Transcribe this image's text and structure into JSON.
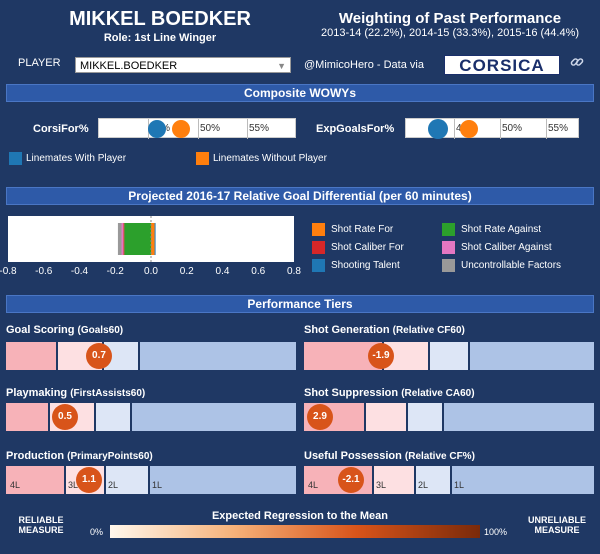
{
  "header": {
    "player_name": "MIKKEL BOEDKER",
    "role": "Role: 1st Line Winger",
    "weighting_title": "Weighting of Past Performance",
    "weighting_subtitle": "2013-14 (22.2%), 2014-15 (33.3%), 2015-16 (44.4%)"
  },
  "controls": {
    "player_label": "PLAYER",
    "player_value": "MIKKEL.BOEDKER",
    "credit": "@MimicoHero - Data via",
    "logo_text": "CORSICA",
    "icon": "link-icon"
  },
  "wowy": {
    "title": "Composite WOWYs",
    "metrics": [
      {
        "label": "CorsiFor%",
        "ticks": [
          "45%",
          "50%",
          "55%"
        ],
        "with_player": 45.0,
        "without_player": 46.2
      },
      {
        "label": "ExpGoalsFor%",
        "ticks": [
          "45%",
          "50%",
          "55%"
        ],
        "with_player": 43.5,
        "without_player": 45.7
      }
    ],
    "legend": [
      {
        "label": "Linemates With Player",
        "color": "#1f77b4"
      },
      {
        "label": "Linemates Without Player",
        "color": "#ff7f0e"
      }
    ]
  },
  "projection": {
    "title": "Projected 2016-17 Relative Goal Differential (per 60 minutes)",
    "axis_ticks": [
      "-0.8",
      "-0.6",
      "-0.4",
      "-0.2",
      "0.0",
      "0.2",
      "0.4",
      "0.6",
      "0.8"
    ],
    "legend": [
      {
        "label": "Shot Rate For",
        "color": "#ff7f0e"
      },
      {
        "label": "Shot Rate Against",
        "color": "#2ca02c"
      },
      {
        "label": "Shot Caliber For",
        "color": "#d62728"
      },
      {
        "label": "Shot Caliber Against",
        "color": "#e377c2"
      },
      {
        "label": "Shooting Talent",
        "color": "#1f77b4"
      },
      {
        "label": "Uncontrollable Factors",
        "color": "#999999"
      }
    ]
  },
  "chart_data": {
    "type": "bar",
    "title": "Projected 2016-17 Relative Goal Differential (per 60 minutes)",
    "xlim": [
      -0.8,
      0.8
    ],
    "series": [
      {
        "name": "Shot Rate For",
        "values": [
          0.02
        ]
      },
      {
        "name": "Shot Rate Against",
        "values": [
          -0.15
        ]
      },
      {
        "name": "Shot Caliber For",
        "values": [
          -0.005
        ]
      },
      {
        "name": "Shot Caliber Against",
        "values": [
          -0.01
        ]
      },
      {
        "name": "Shooting Talent",
        "values": [
          0.005
        ]
      },
      {
        "name": "Uncontrollable Factors",
        "values": [
          -0.02
        ]
      }
    ]
  },
  "tiers": {
    "title": "Performance Tiers",
    "items": [
      {
        "title": "Goal Scoring",
        "sub": "(Goals60)",
        "value": "0.7",
        "labels": []
      },
      {
        "title": "Shot Generation",
        "sub": "(Relative CF60)",
        "value": "-1.9",
        "labels": []
      },
      {
        "title": "Playmaking",
        "sub": "(FirstAssists60)",
        "value": "0.5",
        "labels": []
      },
      {
        "title": "Shot Suppression",
        "sub": "(Relative CA60)",
        "value": "2.9",
        "labels": []
      },
      {
        "title": "Production",
        "sub": "(PrimaryPoints60)",
        "value": "1.1",
        "labels": [
          "4L",
          "3L",
          "2L",
          "1L"
        ]
      },
      {
        "title": "Useful Possession",
        "sub": "(Relative CF%)",
        "value": "-2.1",
        "labels": [
          "4L",
          "3L",
          "2L",
          "1L"
        ]
      }
    ]
  },
  "footer": {
    "left": "RELIABLE MEASURE",
    "title": "Expected Regression to the Mean",
    "min": "0%",
    "max": "100%",
    "right": "UNRELIABLE MEASURE"
  }
}
